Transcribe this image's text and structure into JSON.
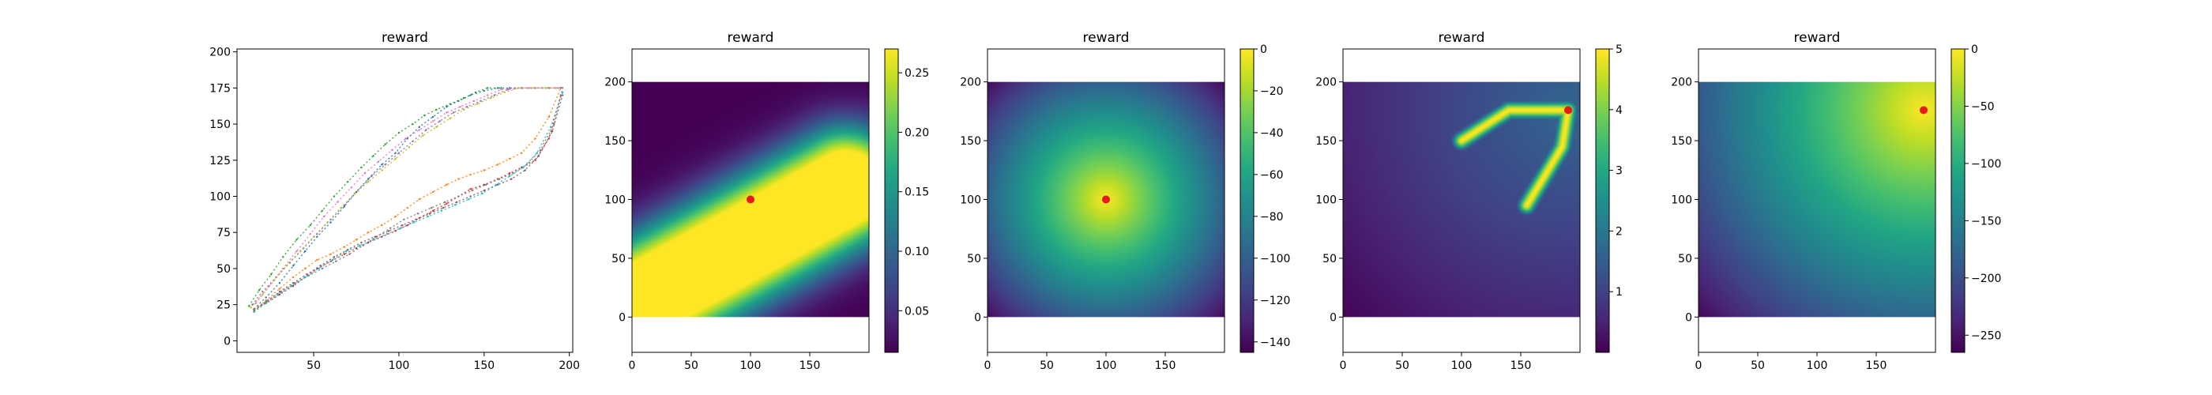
{
  "figure": {
    "colormap": "viridis",
    "marker_color": "#e41a1c"
  },
  "chart_data": [
    {
      "type": "scatter",
      "title": "reward",
      "description_of_marks": "many thin dotted trajectories from lower-left to upper-right forming two bands",
      "xlim": [
        5,
        202
      ],
      "ylim": [
        -8,
        202
      ],
      "xticks": [
        50,
        100,
        150,
        200
      ],
      "yticks": [
        0,
        25,
        50,
        75,
        100,
        125,
        150,
        175,
        200
      ],
      "grid": false,
      "series": [
        {
          "color": "#1f77b4",
          "x": [
            15,
            22,
            30,
            38,
            45,
            52,
            60,
            68,
            75,
            82,
            90,
            98,
            105,
            112,
            120,
            128,
            135,
            142,
            150,
            158,
            165,
            172,
            180,
            188,
            195
          ],
          "y": [
            22,
            30,
            40,
            52,
            62,
            72,
            82,
            93,
            103,
            112,
            122,
            130,
            140,
            148,
            155,
            162,
            166,
            170,
            173,
            175,
            175,
            175,
            175,
            175,
            175
          ]
        },
        {
          "color": "#ff7f0e",
          "x": [
            15,
            22,
            30,
            38,
            45,
            52,
            60,
            68,
            75,
            82,
            90,
            98,
            105,
            112,
            120,
            128,
            135,
            142,
            150,
            158,
            165,
            172,
            180,
            188,
            195
          ],
          "y": [
            20,
            28,
            36,
            44,
            50,
            56,
            60,
            65,
            70,
            75,
            80,
            86,
            92,
            98,
            103,
            108,
            112,
            115,
            118,
            122,
            126,
            130,
            140,
            155,
            175
          ]
        },
        {
          "color": "#2ca02c",
          "x": [
            12,
            18,
            25,
            32,
            40,
            48,
            55,
            62,
            70,
            78,
            85,
            92,
            100,
            108,
            115,
            122,
            130,
            138,
            145,
            152,
            160
          ],
          "y": [
            24,
            35,
            46,
            58,
            70,
            80,
            90,
            100,
            110,
            120,
            128,
            136,
            144,
            150,
            156,
            160,
            164,
            168,
            172,
            175,
            175
          ]
        },
        {
          "color": "#d62728",
          "x": [
            15,
            22,
            30,
            38,
            45,
            52,
            60,
            68,
            75,
            82,
            90,
            98,
            105,
            112,
            120,
            128,
            135,
            142,
            150,
            158,
            165,
            172,
            180,
            188,
            195
          ],
          "y": [
            22,
            26,
            32,
            38,
            44,
            50,
            55,
            60,
            64,
            68,
            72,
            76,
            80,
            85,
            90,
            95,
            100,
            105,
            108,
            112,
            116,
            120,
            125,
            140,
            170
          ]
        },
        {
          "color": "#9467bd",
          "x": [
            14,
            20,
            28,
            36,
            44,
            52,
            60,
            68,
            76,
            84,
            92,
            100,
            108,
            116,
            124,
            132,
            140,
            148,
            156,
            164,
            172,
            180,
            188,
            195
          ],
          "y": [
            25,
            34,
            44,
            54,
            64,
            74,
            84,
            94,
            104,
            114,
            122,
            130,
            138,
            146,
            152,
            158,
            162,
            166,
            170,
            174,
            175,
            175,
            175,
            175
          ]
        },
        {
          "color": "#8c564b",
          "x": [
            15,
            22,
            30,
            38,
            46,
            54,
            62,
            70,
            78,
            86,
            94,
            102,
            110,
            118,
            126,
            134,
            142,
            150,
            158,
            166,
            174,
            182,
            190,
            196
          ],
          "y": [
            21,
            27,
            34,
            40,
            46,
            52,
            58,
            63,
            68,
            72,
            76,
            80,
            84,
            88,
            92,
            96,
            100,
            104,
            108,
            112,
            118,
            128,
            145,
            170
          ]
        },
        {
          "color": "#e377c2",
          "x": [
            16,
            24,
            32,
            40,
            48,
            56,
            64,
            72,
            80,
            88,
            96,
            104,
            112,
            120,
            128,
            136,
            144,
            152,
            160,
            168,
            176,
            184,
            192
          ],
          "y": [
            26,
            38,
            50,
            62,
            74,
            86,
            96,
            106,
            116,
            124,
            132,
            140,
            146,
            152,
            158,
            162,
            166,
            170,
            174,
            175,
            175,
            175,
            175
          ]
        },
        {
          "color": "#7f7f7f",
          "x": [
            15,
            23,
            31,
            39,
            47,
            55,
            63,
            71,
            79,
            87,
            95,
            103,
            111,
            119,
            127,
            135,
            143,
            151,
            159,
            167,
            175,
            183,
            191,
            196
          ],
          "y": [
            22,
            28,
            34,
            40,
            45,
            50,
            55,
            60,
            66,
            72,
            78,
            84,
            88,
            92,
            96,
            100,
            104,
            108,
            112,
            116,
            122,
            132,
            150,
            175
          ]
        },
        {
          "color": "#bcbd22",
          "x": [
            13,
            20,
            27,
            34,
            42,
            50,
            58,
            66,
            74,
            82,
            90,
            98,
            106,
            114,
            122,
            130,
            138,
            146,
            154,
            162,
            170,
            178,
            186,
            194
          ],
          "y": [
            23,
            32,
            42,
            52,
            62,
            72,
            82,
            92,
            102,
            110,
            118,
            126,
            134,
            142,
            148,
            154,
            160,
            164,
            168,
            172,
            175,
            175,
            175,
            175
          ]
        },
        {
          "color": "#17becf",
          "x": [
            15,
            22,
            29,
            37,
            45,
            53,
            61,
            69,
            77,
            85,
            93,
            101,
            109,
            117,
            125,
            133,
            141,
            149,
            157,
            165,
            173,
            181,
            189,
            196
          ],
          "y": [
            20,
            26,
            32,
            38,
            44,
            50,
            56,
            62,
            66,
            70,
            74,
            78,
            82,
            86,
            90,
            94,
            98,
            102,
            108,
            114,
            120,
            130,
            148,
            172
          ]
        }
      ]
    },
    {
      "type": "heatmap",
      "title": "reward",
      "xlim": [
        0,
        200
      ],
      "ylim": [
        -30,
        228
      ],
      "image_extent_y": [
        0,
        200
      ],
      "xticks": [
        0,
        50,
        100,
        150
      ],
      "yticks": [
        0,
        50,
        100,
        150,
        200
      ],
      "colorbar": {
        "min": 0.015,
        "max": 0.27,
        "ticks": [
          0.05,
          0.1,
          0.15,
          0.2,
          0.25
        ],
        "tick_labels": [
          "0.05",
          "0.10",
          "0.15",
          "0.20",
          "0.25"
        ]
      },
      "field": "gaussian band along diagonal from (0,10) to (180,110)",
      "marker": {
        "x": 100,
        "y": 100
      }
    },
    {
      "type": "heatmap",
      "title": "reward",
      "xlim": [
        0,
        200
      ],
      "ylim": [
        -30,
        228
      ],
      "image_extent_y": [
        0,
        200
      ],
      "xticks": [
        0,
        50,
        100,
        150
      ],
      "yticks": [
        0,
        50,
        100,
        150,
        200
      ],
      "colorbar": {
        "min": -145,
        "max": 0,
        "ticks": [
          0,
          -20,
          -40,
          -60,
          -80,
          -100,
          -120,
          -140
        ],
        "tick_labels": [
          "0",
          "−20",
          "−40",
          "−60",
          "−80",
          "−100",
          "−120",
          "−140"
        ]
      },
      "field": "negative distance to goal",
      "marker": {
        "x": 100,
        "y": 100
      }
    },
    {
      "type": "heatmap",
      "title": "reward",
      "xlim": [
        0,
        200
      ],
      "ylim": [
        -30,
        228
      ],
      "image_extent_y": [
        0,
        200
      ],
      "xticks": [
        0,
        50,
        100,
        150
      ],
      "yticks": [
        0,
        50,
        100,
        150,
        200
      ],
      "colorbar": {
        "min": 0,
        "max": 5,
        "ticks": [
          1,
          2,
          3,
          4,
          5
        ],
        "tick_labels": [
          "1",
          "2",
          "3",
          "4",
          "5"
        ]
      },
      "field": "bright paths from goal toward (100,150) and (155,95)",
      "marker": {
        "x": 190,
        "y": 176
      }
    },
    {
      "type": "heatmap",
      "title": "reward",
      "xlim": [
        0,
        200
      ],
      "ylim": [
        -30,
        228
      ],
      "image_extent_y": [
        0,
        200
      ],
      "xticks": [
        0,
        50,
        100,
        150
      ],
      "yticks": [
        0,
        50,
        100,
        150,
        200
      ],
      "colorbar": {
        "min": -265,
        "max": 0,
        "ticks": [
          0,
          -50,
          -100,
          -150,
          -200,
          -250
        ],
        "tick_labels": [
          "0",
          "−50",
          "−100",
          "−150",
          "−200",
          "−250"
        ]
      },
      "field": "negative distance to goal",
      "marker": {
        "x": 190,
        "y": 176
      }
    }
  ]
}
